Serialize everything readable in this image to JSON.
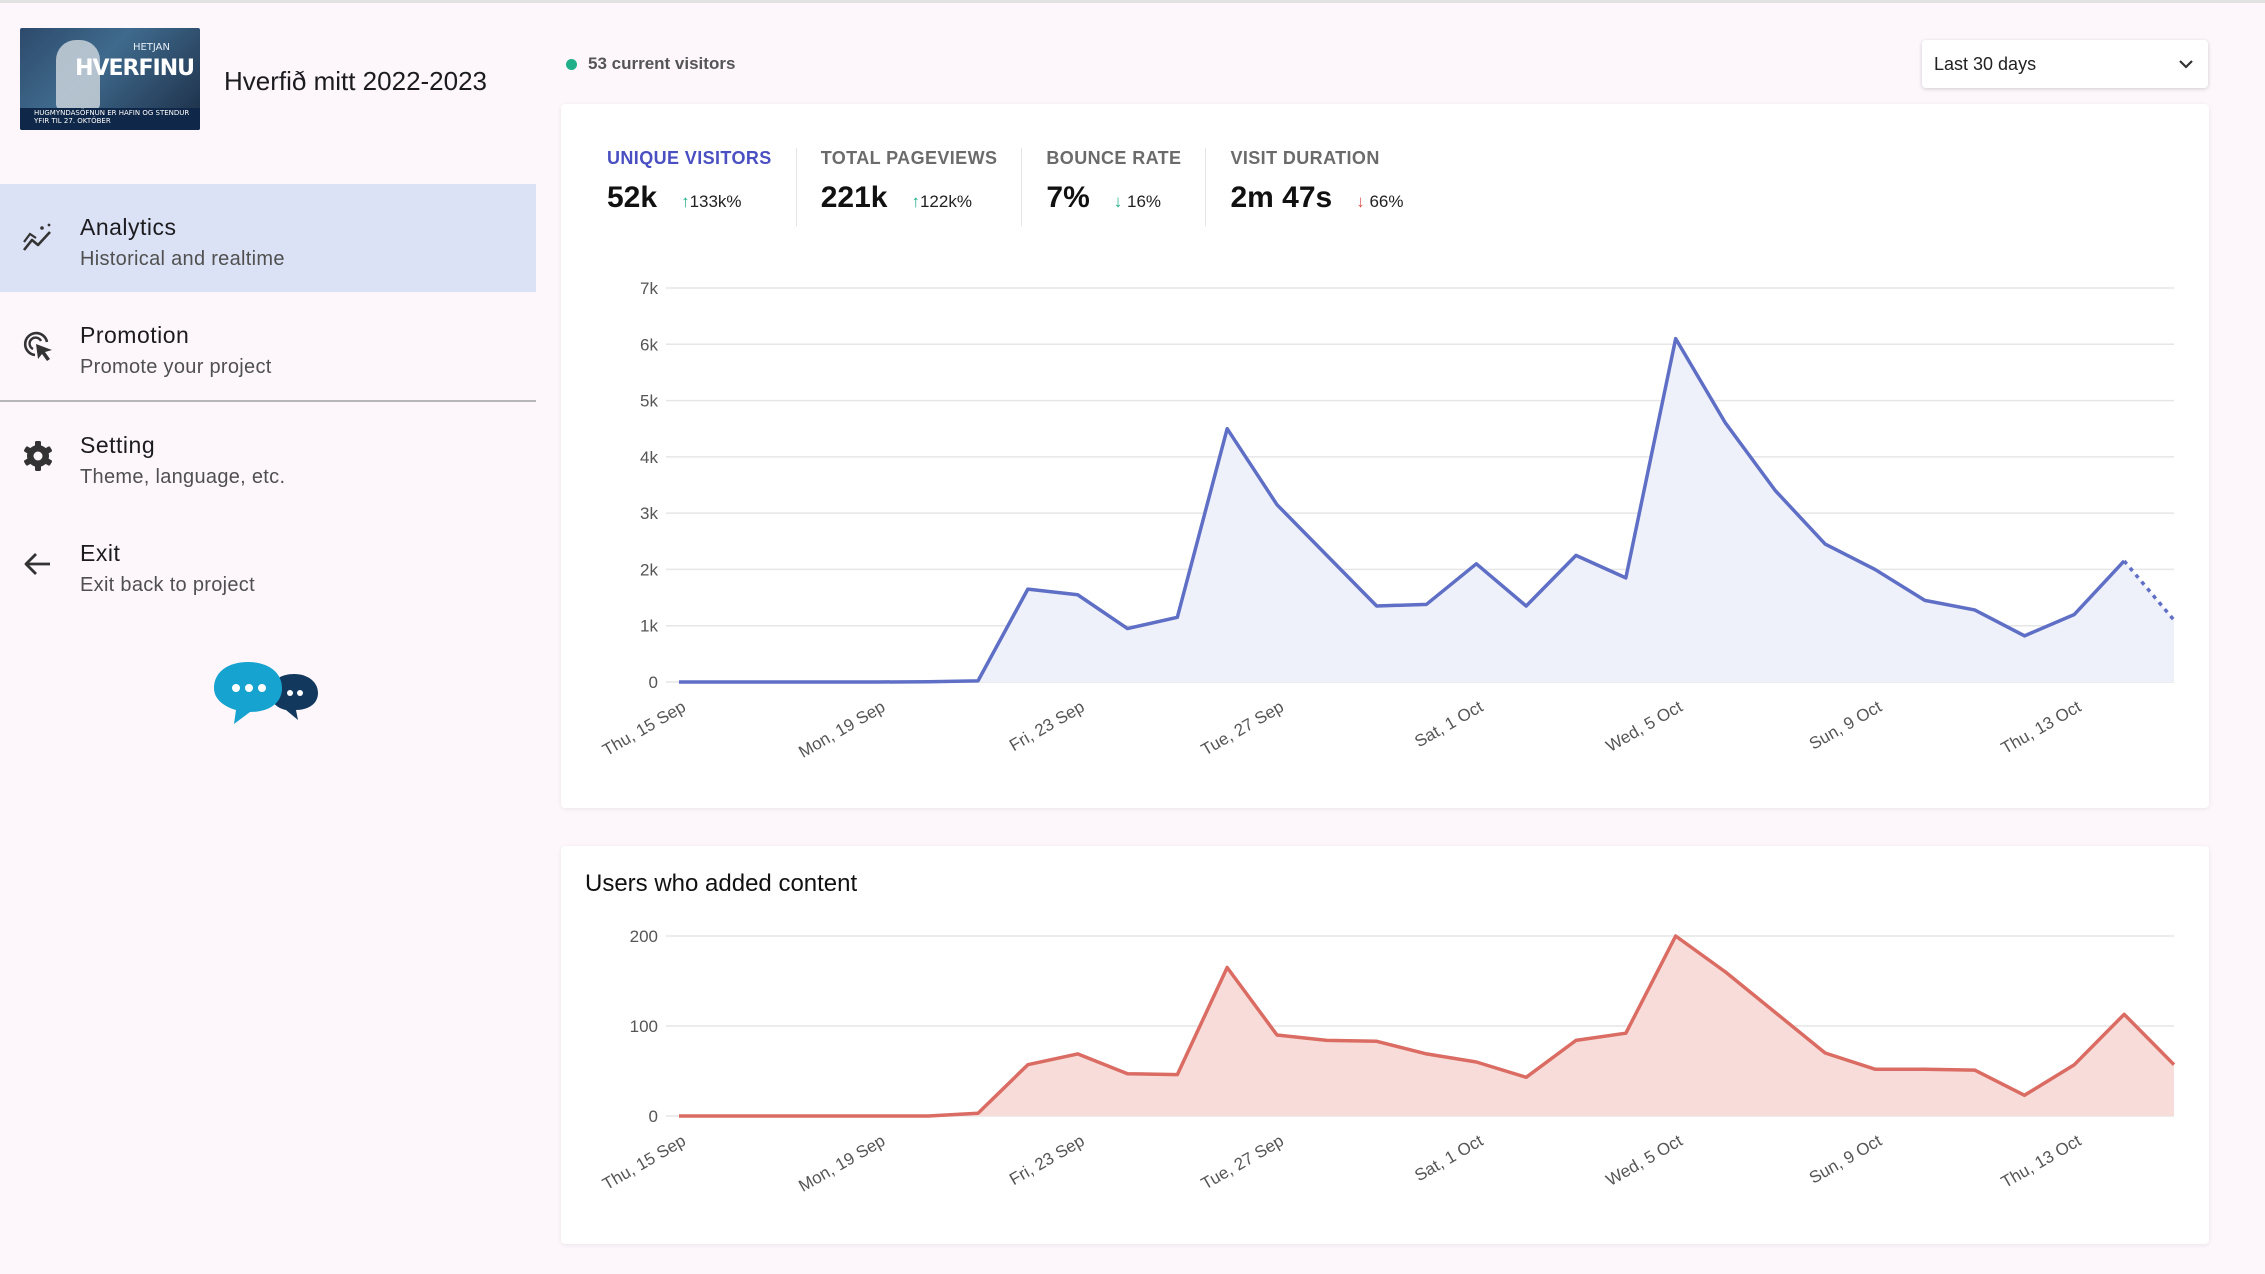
{
  "project": {
    "title": "Hverfið mitt 2022-2023",
    "thumbnail_brand": "HVERFINU",
    "thumbnail_brand_small": "HETJAN",
    "thumbnail_banner": "HUGMYNDASÖFNUN ER HAFIN OG STENDUR YFIR TIL 27. OKTÓBER"
  },
  "nav": [
    {
      "label": "Analytics",
      "sub": "Historical and realtime",
      "icon": "analytics-icon",
      "active": true
    },
    {
      "label": "Promotion",
      "sub": "Promote your project",
      "icon": "promotion-icon",
      "active": false
    },
    {
      "label": "Setting",
      "sub": "Theme, language, etc.",
      "icon": "gear-icon",
      "active": false
    },
    {
      "label": "Exit",
      "sub": "Exit back to project",
      "icon": "arrow-left-icon",
      "active": false
    }
  ],
  "current_visitors": "53 current visitors",
  "date_range": {
    "selected": "Last 30 days"
  },
  "stats": [
    {
      "label": "UNIQUE VISITORS",
      "value": "52k",
      "arrow": "↑",
      "change": "133k%",
      "direction": "up",
      "selected": true
    },
    {
      "label": "TOTAL PAGEVIEWS",
      "value": "221k",
      "arrow": "↑",
      "change": "122k%",
      "direction": "up",
      "selected": false
    },
    {
      "label": "BOUNCE RATE",
      "value": "7%",
      "arrow": "↓",
      "change": "16%",
      "direction": "down-good",
      "selected": false
    },
    {
      "label": "VISIT DURATION",
      "value": "2m 47s",
      "arrow": "↓",
      "change": "66%",
      "direction": "down-bad",
      "selected": false
    }
  ],
  "colors": {
    "visitors_line": "#5f6fc5",
    "visitors_fill": "#eef0fa",
    "content_line": "#da6c63",
    "content_fill": "#f8dcd9",
    "active_nav": "#dbe2f5",
    "green": "#1fb089"
  },
  "chart_data": [
    {
      "type": "area",
      "title": "",
      "xlabel": "",
      "ylabel": "",
      "ylim": [
        0,
        7000
      ],
      "yticks": [
        0,
        1000,
        2000,
        3000,
        4000,
        5000,
        6000,
        7000
      ],
      "ytick_labels": [
        "0",
        "1k",
        "2k",
        "3k",
        "4k",
        "5k",
        "6k",
        "7k"
      ],
      "x_tick_labels": [
        "Thu, 15 Sep",
        "Mon, 19 Sep",
        "Fri, 23 Sep",
        "Tue, 27 Sep",
        "Sat, 1 Oct",
        "Wed, 5 Oct",
        "Sun, 9 Oct",
        "Thu, 13 Oct"
      ],
      "x_tick_every": 4,
      "grid": true,
      "last_segment_dashed": true,
      "x": [
        "Thu, 15 Sep",
        "16 Sep",
        "17 Sep",
        "18 Sep",
        "Mon, 19 Sep",
        "20 Sep",
        "21 Sep",
        "22 Sep",
        "Fri, 23 Sep",
        "24 Sep",
        "25 Sep",
        "26 Sep",
        "Tue, 27 Sep",
        "28 Sep",
        "29 Sep",
        "30 Sep",
        "Sat, 1 Oct",
        "2 Oct",
        "3 Oct",
        "4 Oct",
        "Wed, 5 Oct",
        "6 Oct",
        "7 Oct",
        "8 Oct",
        "Sun, 9 Oct",
        "10 Oct",
        "11 Oct",
        "12 Oct",
        "Thu, 13 Oct",
        "14 Oct",
        "15 Oct"
      ],
      "series": [
        {
          "values": [
            0,
            0,
            0,
            0,
            0,
            5,
            20,
            1650,
            1550,
            950,
            1150,
            4500,
            3150,
            2250,
            1350,
            1380,
            2100,
            1350,
            2250,
            1850,
            6100,
            4600,
            3400,
            2450,
            2000,
            1450,
            1280,
            820,
            1200,
            2150,
            1100
          ]
        }
      ]
    },
    {
      "type": "area",
      "title": "Users who added content",
      "xlabel": "",
      "ylabel": "",
      "ylim": [
        0,
        200
      ],
      "yticks": [
        0,
        100,
        200
      ],
      "ytick_labels": [
        "0",
        "100",
        "200"
      ],
      "x_tick_labels": [
        "Thu, 15 Sep",
        "Mon, 19 Sep",
        "Fri, 23 Sep",
        "Tue, 27 Sep",
        "Sat, 1 Oct",
        "Wed, 5 Oct",
        "Sun, 9 Oct",
        "Thu, 13 Oct"
      ],
      "x_tick_every": 4,
      "grid": true,
      "last_segment_dashed": false,
      "x": [
        "Thu, 15 Sep",
        "16 Sep",
        "17 Sep",
        "18 Sep",
        "Mon, 19 Sep",
        "20 Sep",
        "21 Sep",
        "22 Sep",
        "Fri, 23 Sep",
        "24 Sep",
        "25 Sep",
        "26 Sep",
        "Tue, 27 Sep",
        "28 Sep",
        "29 Sep",
        "30 Sep",
        "Sat, 1 Oct",
        "2 Oct",
        "3 Oct",
        "4 Oct",
        "Wed, 5 Oct",
        "6 Oct",
        "7 Oct",
        "8 Oct",
        "Sun, 9 Oct",
        "10 Oct",
        "11 Oct",
        "12 Oct",
        "Thu, 13 Oct",
        "14 Oct",
        "15 Oct"
      ],
      "series": [
        {
          "values": [
            0,
            0,
            0,
            0,
            0,
            0,
            3,
            57,
            69,
            47,
            46,
            165,
            90,
            84,
            83,
            69,
            60,
            43,
            84,
            92,
            200,
            160,
            115,
            70,
            52,
            52,
            51,
            23,
            57,
            113,
            57
          ]
        }
      ]
    }
  ]
}
